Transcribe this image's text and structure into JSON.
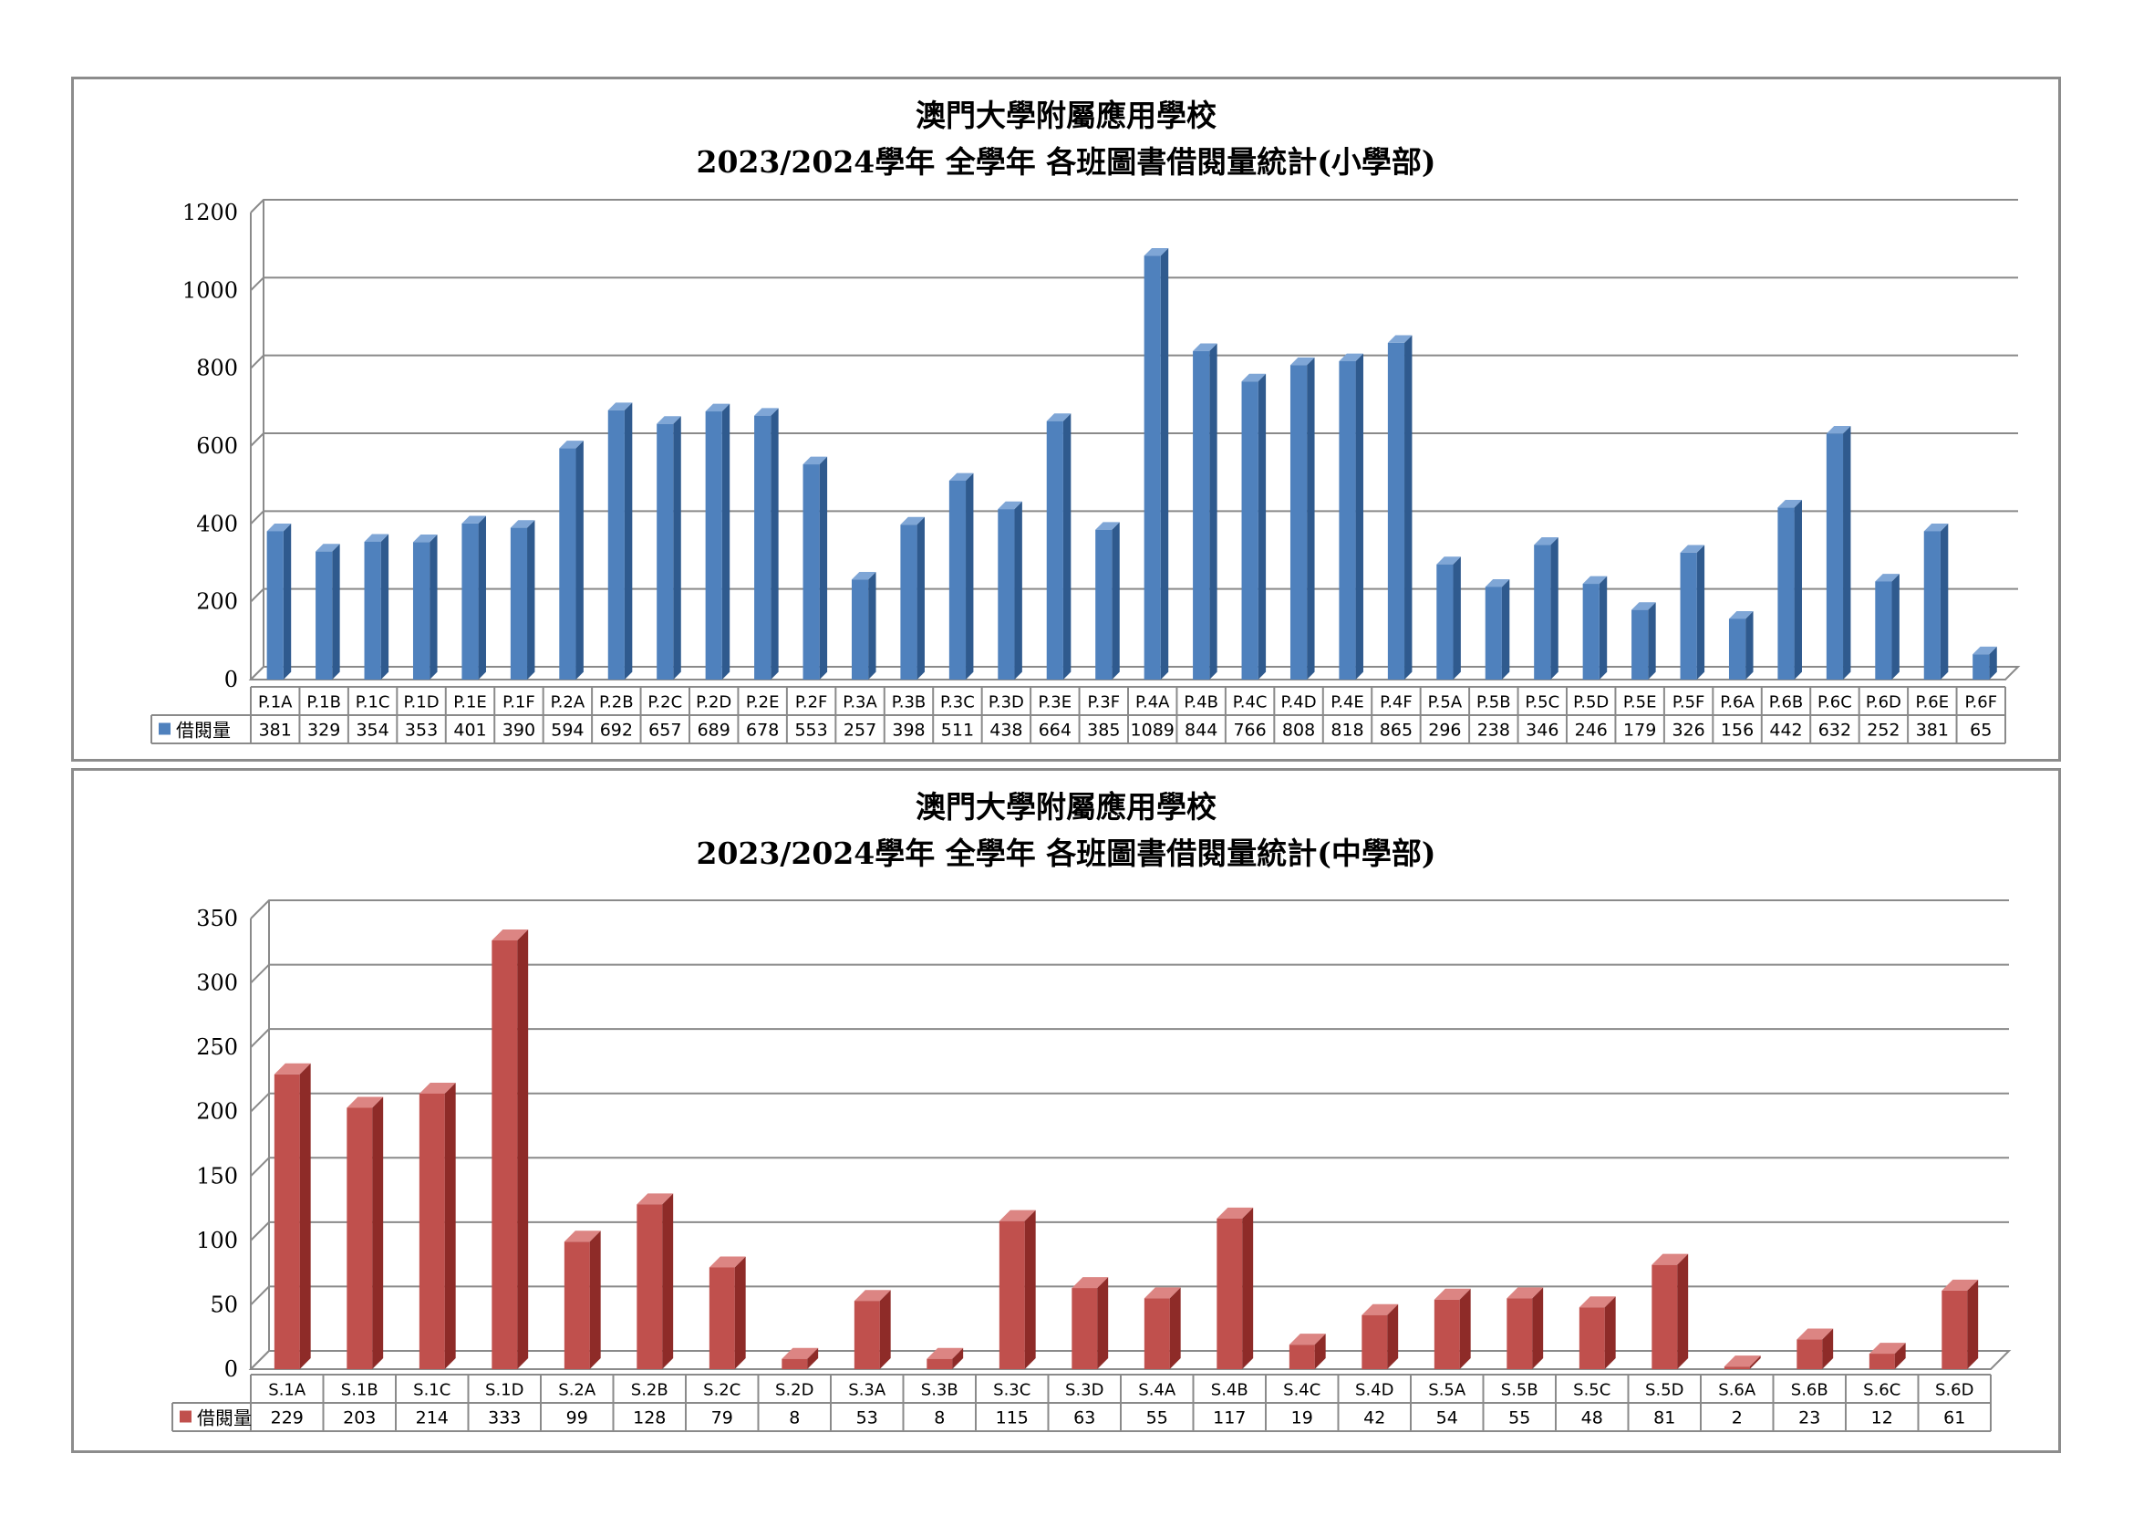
{
  "charts": [
    {
      "title_line1": "澳門大學附屬應用學校",
      "title_line2": "2023/2024學年  全學年 各班圖書借閱量統計(小學部)"
    },
    {
      "title_line1": "澳門大學附屬應用學校",
      "title_line2": "2023/2024學年  全學年 各班圖書借閱量統計(中學部)"
    }
  ],
  "chart_data": [
    {
      "type": "bar",
      "categories": [
        "P.1A",
        "P.1B",
        "P.1C",
        "P.1D",
        "P.1E",
        "P.1F",
        "P.2A",
        "P.2B",
        "P.2C",
        "P.2D",
        "P.2E",
        "P.2F",
        "P.3A",
        "P.3B",
        "P.3C",
        "P.3D",
        "P.3E",
        "P.3F",
        "P.4A",
        "P.4B",
        "P.4C",
        "P.4D",
        "P.4E",
        "P.4F",
        "P.5A",
        "P.5B",
        "P.5C",
        "P.5D",
        "P.5E",
        "P.5F",
        "P.6A",
        "P.6B",
        "P.6C",
        "P.6D",
        "P.6E",
        "P.6F"
      ],
      "series": [
        {
          "name": "借閱量",
          "values": [
            381,
            329,
            354,
            353,
            401,
            390,
            594,
            692,
            657,
            689,
            678,
            553,
            257,
            398,
            511,
            438,
            664,
            385,
            1089,
            844,
            766,
            808,
            818,
            865,
            296,
            238,
            346,
            246,
            179,
            326,
            156,
            442,
            632,
            252,
            381,
            65
          ]
        }
      ],
      "ylim": [
        0,
        1200
      ],
      "yticks": [
        0,
        200,
        400,
        600,
        800,
        1000,
        1200
      ],
      "grid": true,
      "legend": "data-table",
      "colors": {
        "front": "#4f81bd",
        "top": "#7fa6d6",
        "side": "#2f5a8e"
      }
    },
    {
      "type": "bar",
      "categories": [
        "S.1A",
        "S.1B",
        "S.1C",
        "S.1D",
        "S.2A",
        "S.2B",
        "S.2C",
        "S.2D",
        "S.3A",
        "S.3B",
        "S.3C",
        "S.3D",
        "S.4A",
        "S.4B",
        "S.4C",
        "S.4D",
        "S.5A",
        "S.5B",
        "S.5C",
        "S.5D",
        "S.6A",
        "S.6B",
        "S.6C",
        "S.6D"
      ],
      "series": [
        {
          "name": "借閱量",
          "values": [
            229,
            203,
            214,
            333,
            99,
            128,
            79,
            8,
            53,
            8,
            115,
            63,
            55,
            117,
            19,
            42,
            54,
            55,
            48,
            81,
            2,
            23,
            12,
            61
          ]
        }
      ],
      "ylim": [
        0,
        350
      ],
      "yticks": [
        0,
        50,
        100,
        150,
        200,
        250,
        300,
        350
      ],
      "grid": true,
      "legend": "data-table",
      "colors": {
        "front": "#c0504d",
        "top": "#dc8583",
        "side": "#8e2b28"
      }
    }
  ]
}
